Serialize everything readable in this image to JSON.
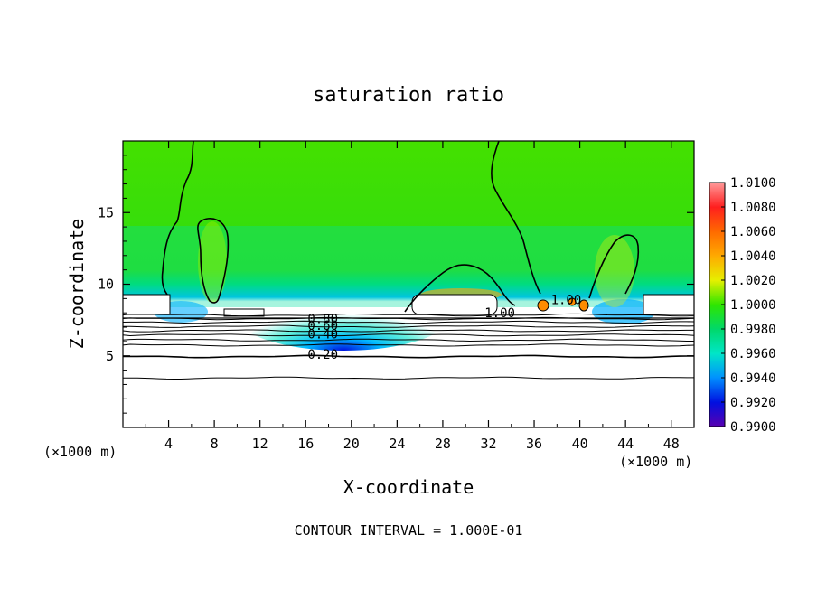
{
  "chart_data": {
    "type": "heatmap",
    "title": "saturation ratio",
    "xlabel": "X-coordinate",
    "ylabel": "Z-coordinate",
    "x_unit": "(×1000 m)",
    "y_unit": "(×1000 m)",
    "xlim": [
      0,
      50
    ],
    "ylim": [
      0,
      20
    ],
    "x_ticks": [
      4,
      8,
      12,
      16,
      20,
      24,
      28,
      32,
      36,
      40,
      44,
      48
    ],
    "y_ticks": [
      5,
      10,
      15
    ],
    "colorbar": {
      "range": [
        0.99,
        1.01
      ],
      "labels": [
        "1.0100",
        "1.0080",
        "1.0060",
        "1.0040",
        "1.0020",
        "1.0000",
        "0.9980",
        "0.9960",
        "0.9940",
        "0.9920",
        "0.9900"
      ],
      "colors": [
        "#ff9a9a",
        "#ff1e1e",
        "#ff6a00",
        "#ffaa00",
        "#e6f000",
        "#2ee600",
        "#00d86a",
        "#00e6c8",
        "#0090ff",
        "#0010e0",
        "#5a00b0"
      ]
    },
    "contour_labels": [
      {
        "text": "0.80",
        "x": 17.5,
        "z": 7.3
      },
      {
        "text": "0.60",
        "x": 17.5,
        "z": 6.8
      },
      {
        "text": "0.40",
        "x": 17.5,
        "z": 6.2
      },
      {
        "text": "0.20",
        "x": 17.5,
        "z": 4.8
      },
      {
        "text": "1.00",
        "x": 33.0,
        "z": 7.7
      },
      {
        "text": "1.00",
        "x": 38.8,
        "z": 8.6
      }
    ],
    "contour_lines_z": [
      7.85,
      7.6,
      7.35,
      7.05,
      6.75,
      6.45,
      6.1,
      5.75,
      4.95,
      3.45
    ],
    "footer": "CONTOUR INTERVAL = 1.000E-01"
  }
}
